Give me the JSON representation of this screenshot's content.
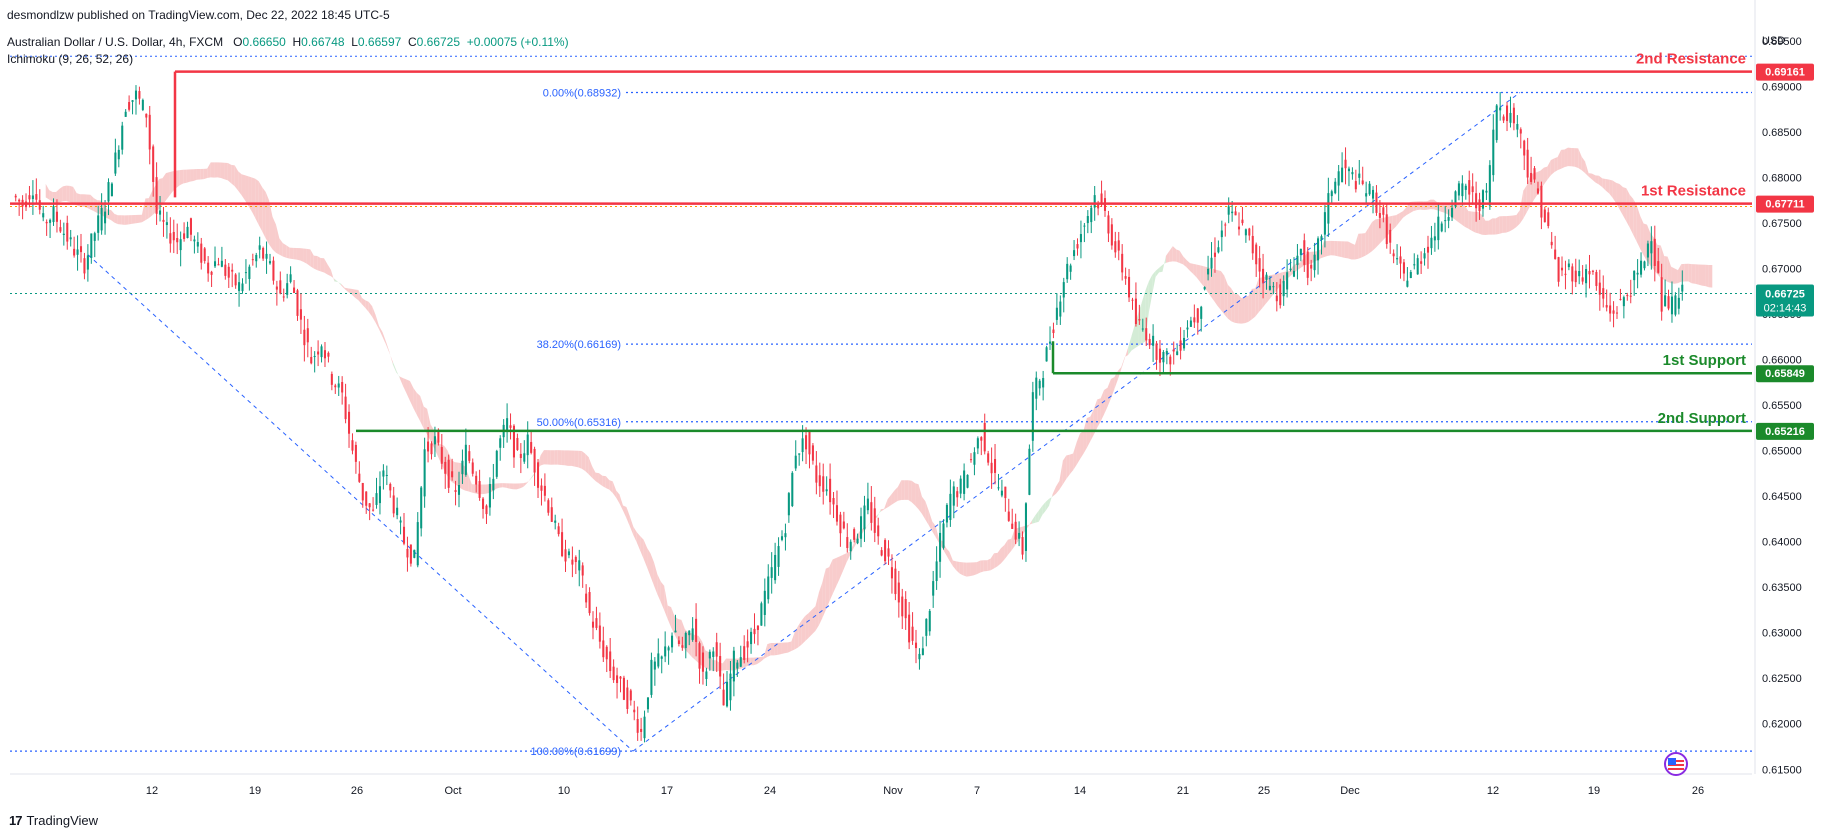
{
  "header": {
    "published": "desmondlzw published on TradingView.com, Dec 22, 2022 18:45 UTC-5",
    "symbol": "Australian Dollar / U.S. Dollar, 4h, FXCM",
    "open_label": "O",
    "open": "0.66650",
    "high_label": "H",
    "high": "0.66748",
    "low_label": "L",
    "low": "0.66597",
    "close_label": "C",
    "close": "0.66725",
    "change": "+0.00075 (+0.11%)",
    "indicator": "Ichimoku (9, 26, 52, 26)"
  },
  "footer": {
    "logo": "17",
    "brand": "TradingView"
  },
  "colors": {
    "up": "#089981",
    "down": "#f23645",
    "resistance": "#f23645",
    "support": "#1b8a2b",
    "fib": "#2962ff",
    "cloud_red": "#f7c3c3",
    "cloud_green": "#cde9cf"
  },
  "chart_data": {
    "type": "candlestick",
    "symbol": "AUDUSD",
    "timeframe": "4h",
    "currency": "USD",
    "ylim": [
      0.6147,
      0.6975
    ],
    "x_ticks": [
      "12",
      "19",
      "26",
      "Oct",
      "10",
      "17",
      "24",
      "Nov",
      "7",
      "14",
      "21",
      "25",
      "Dec",
      "12",
      "19",
      "26"
    ],
    "y_ticks": [
      "0.69500",
      "0.69000",
      "0.68500",
      "0.68000",
      "0.67500",
      "0.67000",
      "0.66500",
      "0.66000",
      "0.65500",
      "0.65000",
      "0.64500",
      "0.64000",
      "0.63500",
      "0.63000",
      "0.62500",
      "0.62000",
      "0.61500"
    ],
    "last_price": "0.66725",
    "countdown": "02:14:43",
    "levels": [
      {
        "name": "2nd Resistance",
        "value": "0.69161",
        "kind": "resistance"
      },
      {
        "name": "1st Resistance",
        "value": "0.67711",
        "kind": "resistance"
      },
      {
        "name": "1st Support",
        "value": "0.65849",
        "kind": "support"
      },
      {
        "name": "2nd Support",
        "value": "0.65216",
        "kind": "support"
      }
    ],
    "fib_levels": [
      {
        "label": "0.00%(0.68932)",
        "value": 0.68932
      },
      {
        "label": "38.20%(0.66169)",
        "value": 0.66169
      },
      {
        "label": "50.00%(0.65316)",
        "value": 0.65316
      },
      {
        "label": "100.00%(0.61699)",
        "value": 0.61699
      }
    ],
    "price_path": [
      [
        0.678,
        0.677,
        0.679,
        0.675,
        0.676,
        0.674,
        0.672,
        0.6705,
        0.674,
        0.677,
        0.682,
        0.688,
        0.689,
        0.687,
        0.676,
        0.674,
        0.673,
        0.6745,
        0.672,
        0.67,
        0.671,
        0.669,
        0.668,
        0.67,
        0.672,
        0.67,
        0.667,
        0.669,
        0.664,
        0.66,
        0.662,
        0.658,
        0.656,
        0.65,
        0.645,
        0.643,
        0.648,
        0.644,
        0.64,
        0.638,
        0.65,
        0.651,
        0.648,
        0.645,
        0.65,
        0.647,
        0.643,
        0.65,
        0.653,
        0.649,
        0.651,
        0.647,
        0.644,
        0.64,
        0.638,
        0.637,
        0.632,
        0.629,
        0.626,
        0.624,
        0.622,
        0.619,
        0.626,
        0.627,
        0.63,
        0.628,
        0.631,
        0.625,
        0.629,
        0.622,
        0.627,
        0.628,
        0.63,
        0.634,
        0.638,
        0.642,
        0.65,
        0.651,
        0.647,
        0.646,
        0.643,
        0.64,
        0.641,
        0.644,
        0.64,
        0.638,
        0.634,
        0.63,
        0.627,
        0.633,
        0.64,
        0.645,
        0.646,
        0.649,
        0.652,
        0.648,
        0.645,
        0.642,
        0.639,
        0.656,
        0.659,
        0.664,
        0.669,
        0.672,
        0.675,
        0.678,
        0.676,
        0.672,
        0.669,
        0.664,
        0.663,
        0.661,
        0.66,
        0.661,
        0.664,
        0.665,
        0.67,
        0.673,
        0.676,
        0.675,
        0.673,
        0.67,
        0.668,
        0.667,
        0.67,
        0.672,
        0.669,
        0.674,
        0.679,
        0.681,
        0.68,
        0.679,
        0.678,
        0.675,
        0.671,
        0.669,
        0.67,
        0.672,
        0.674,
        0.676,
        0.678,
        0.679,
        0.677,
        0.678,
        0.688,
        0.687,
        0.686,
        0.681,
        0.678,
        0.674,
        0.669,
        0.67,
        0.669,
        0.67,
        0.667,
        0.665,
        0.666,
        0.668,
        0.67,
        0.674,
        0.666,
        0.666,
        0.6672
      ]
    ]
  }
}
